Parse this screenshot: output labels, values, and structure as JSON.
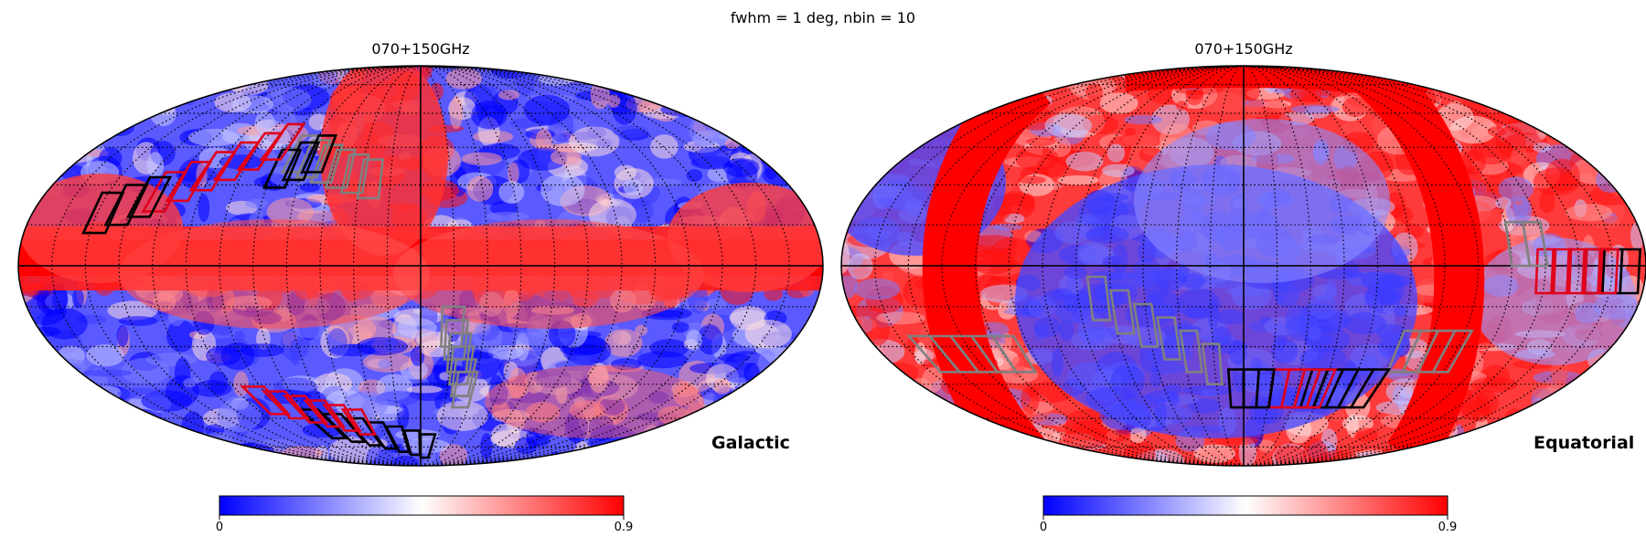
{
  "figure": {
    "suptitle": "fwhm = 1 deg, nbin = 10"
  },
  "chart_data": [
    {
      "type": "heatmap",
      "projection": "mollweide",
      "title": "070+150GHz",
      "coord_label": "Galactic",
      "colorbar": {
        "min_label": "0",
        "max_label": "0.9",
        "range": [
          0,
          0.9
        ],
        "colormap": "bwr"
      },
      "graticule": true,
      "patch_colors": {
        "red": "#e0001a",
        "black": "#000000",
        "gray": "#808080"
      }
    },
    {
      "type": "heatmap",
      "projection": "mollweide",
      "title": "070+150GHz",
      "coord_label": "Equatorial",
      "colorbar": {
        "min_label": "0",
        "max_label": "0.9",
        "range": [
          0,
          0.9
        ],
        "colormap": "bwr"
      },
      "graticule": true,
      "patch_colors": {
        "red": "#e0001a",
        "black": "#000000",
        "gray": "#808080"
      }
    }
  ],
  "colors": {
    "low": "#0000ff",
    "mid": "#ffffff",
    "high": "#ff0000"
  }
}
